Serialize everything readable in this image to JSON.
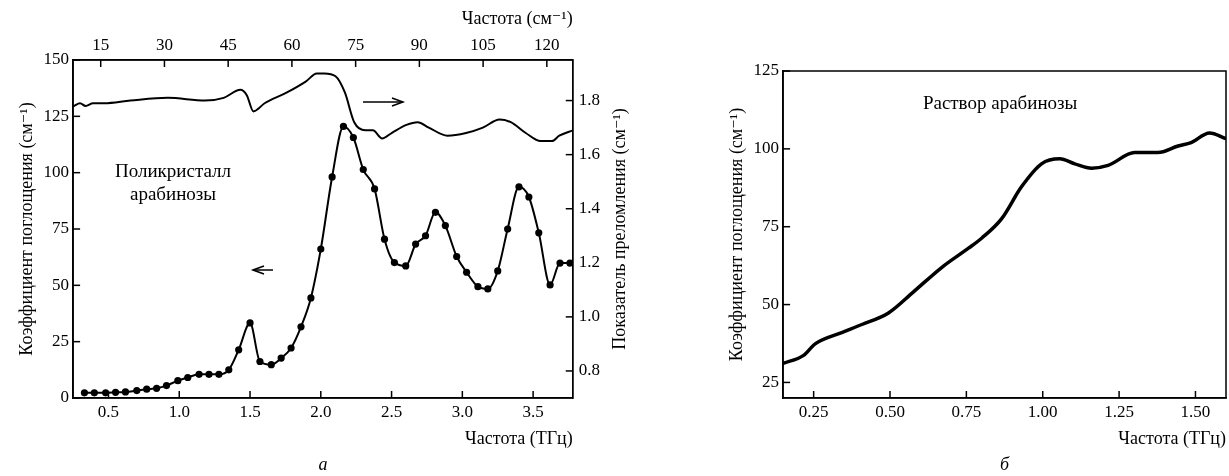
{
  "chart_data": [
    {
      "type": "line",
      "title": "Поликристалл арабинозы",
      "xlabel": "Частота (ТГц)",
      "ylabel": "Коэффициент поглощения (см⁻¹)",
      "y2label": "Показатель преломления (см⁻¹)",
      "x2label": "Частота (см⁻¹)",
      "annotations": [
        "а"
      ],
      "xlim": [
        0.25,
        3.78
      ],
      "xticks": [
        0.5,
        {
          "value": 1,
          "label": "1.0"
        },
        1.5,
        {
          "value": 2,
          "label": "2.0"
        },
        2.5,
        {
          "value": 3,
          "label": "3.0"
        },
        3.5
      ],
      "x2lim": [
        8.5,
        126.1
      ],
      "x2ticks": [
        15,
        30,
        45,
        60,
        75,
        90,
        105,
        120
      ],
      "ylim": [
        0,
        150
      ],
      "yticks": [
        0,
        25,
        50,
        75,
        100,
        125,
        150
      ],
      "y2lim": [
        0.7,
        1.95
      ],
      "y2ticks": [
        0.8,
        {
          "value": 1,
          "label": "1.0"
        },
        1.2,
        1.4,
        1.6,
        1.8
      ],
      "series": [
        {
          "type": "line",
          "marker": "circle",
          "color": "#000000",
          "x": [
            0.33,
            0.4,
            0.48,
            0.55,
            0.62,
            0.7,
            0.77,
            0.84,
            0.91,
            0.99,
            1.06,
            1.14,
            1.21,
            1.28,
            1.35,
            1.42,
            1.5,
            1.57,
            1.65,
            1.72,
            1.79,
            1.86,
            1.93,
            2.0,
            2.08,
            2.16,
            2.23,
            2.3,
            2.38,
            2.45,
            2.52,
            2.6,
            2.67,
            2.74,
            2.81,
            2.88,
            2.96,
            3.03,
            3.11,
            3.18,
            3.25,
            3.32,
            3.4,
            3.47,
            3.54,
            3.62,
            3.69,
            3.76
          ],
          "values": [
            2.3,
            2.3,
            2.3,
            2.5,
            2.7,
            3.3,
            3.9,
            4.3,
            5.5,
            7.7,
            9.1,
            10.5,
            10.5,
            10.5,
            12.5,
            21.4,
            33.3,
            16.2,
            14.8,
            17.7,
            22.2,
            31.6,
            44.4,
            66.1,
            98.1,
            120.5,
            115.6,
            101.4,
            92.8,
            70.5,
            60.1,
            58.6,
            68.3,
            72.0,
            82.4,
            76.5,
            62.8,
            55.8,
            49.4,
            48.4,
            56.4,
            75.0,
            93.7,
            89.2,
            73.3,
            50.2,
            59.9,
            59.9
          ]
        },
        {
          "type": "line",
          "marker": "none",
          "axis": "y2",
          "color": "#000000",
          "x": [
            0.255,
            0.299,
            0.338,
            0.391,
            0.47,
            0.655,
            0.919,
            1.182,
            1.314,
            1.432,
            1.477,
            1.524,
            1.603,
            1.761,
            1.893,
            1.972,
            2.025,
            2.104,
            2.17,
            2.236,
            2.315,
            2.368,
            2.433,
            2.5,
            2.605,
            2.684,
            2.763,
            2.895,
            3.026,
            3.145,
            3.263,
            3.342,
            3.448,
            3.553,
            3.632,
            3.685,
            3.78
          ],
          "values": [
            1.78,
            1.79,
            1.78,
            1.79,
            1.79,
            1.8,
            1.81,
            1.8,
            1.81,
            1.84,
            1.82,
            1.76,
            1.79,
            1.83,
            1.87,
            1.9,
            1.9,
            1.89,
            1.83,
            1.72,
            1.69,
            1.69,
            1.66,
            1.68,
            1.71,
            1.72,
            1.7,
            1.67,
            1.68,
            1.7,
            1.73,
            1.72,
            1.68,
            1.65,
            1.65,
            1.67,
            1.69
          ]
        }
      ]
    },
    {
      "type": "line",
      "title": "Раствор арабинозы",
      "xlabel": "Частота (ТГц)",
      "ylabel": "Коэффициент поглощения (см⁻¹)",
      "annotations": [
        "б"
      ],
      "xlim": [
        0.15,
        1.6
      ],
      "xticks": [
        0.25,
        {
          "value": 0.5,
          "label": "0.50"
        },
        0.75,
        {
          "value": 1,
          "label": "1.00"
        },
        1.25,
        {
          "value": 1.5,
          "label": "1.50"
        }
      ],
      "ylim": [
        20,
        125
      ],
      "yticks": [
        25,
        50,
        75,
        100,
        125
      ],
      "series": [
        {
          "type": "line",
          "marker": "none",
          "color": "#000000",
          "x": [
            0.15,
            0.217,
            0.255,
            0.342,
            0.408,
            0.495,
            0.576,
            0.669,
            0.757,
            0.8,
            0.865,
            0.931,
            0.996,
            1.056,
            1.105,
            1.16,
            1.214,
            1.301,
            1.377,
            1.443,
            1.486,
            1.546,
            1.6
          ],
          "values": [
            31.1,
            33.7,
            37.4,
            41.0,
            43.6,
            47.3,
            54.0,
            61.9,
            68.1,
            71.3,
            77.5,
            87.9,
            95.2,
            96.8,
            95.2,
            93.8,
            94.7,
            98.8,
            98.8,
            100.9,
            102.0,
            105.1,
            103.3
          ]
        }
      ]
    }
  ]
}
